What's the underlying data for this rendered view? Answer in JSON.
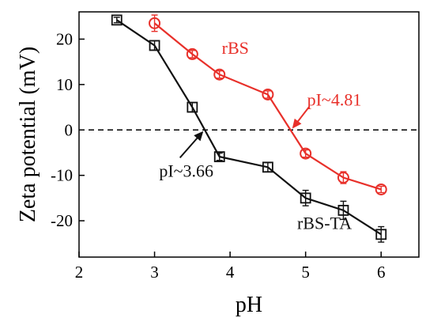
{
  "chart_data": {
    "type": "line",
    "title": "",
    "xlabel": "pH",
    "ylabel": "Zeta potential (mV)",
    "xlim": [
      2,
      6.5
    ],
    "ylim": [
      -28,
      26
    ],
    "xticks": [
      2,
      3,
      4,
      5,
      6
    ],
    "yticks": [
      -20,
      -10,
      0,
      10,
      20
    ],
    "grid": false,
    "legend": "none",
    "zero_line": {
      "y": 0,
      "style": "dashed"
    },
    "series": [
      {
        "name": "rBS",
        "color": "#e8302a",
        "marker": "circle",
        "x": [
          3.0,
          3.5,
          3.86,
          4.5,
          5.0,
          5.5,
          6.0
        ],
        "y": [
          23.5,
          16.7,
          12.2,
          7.8,
          -5.2,
          -10.5,
          -13.1
        ],
        "err": [
          1.8,
          0.8,
          0.8,
          0.8,
          0.8,
          1.3,
          0.7
        ]
      },
      {
        "name": "rBS-TA",
        "color": "#111111",
        "marker": "square",
        "x": [
          2.5,
          3.0,
          3.5,
          3.86,
          4.5,
          5.0,
          5.5,
          6.0
        ],
        "y": [
          24.2,
          18.6,
          5.0,
          -5.9,
          -8.2,
          -15.0,
          -17.7,
          -23.0
        ],
        "err": [
          0.6,
          1.0,
          1.0,
          0.8,
          1.0,
          1.7,
          2.0,
          1.7
        ]
      }
    ],
    "annotations": [
      {
        "text": "rBS",
        "color": "#e8302a",
        "x": 4.07,
        "y": 16.8
      },
      {
        "text": "rBS-TA",
        "color": "#111111",
        "x": 5.25,
        "y": -21.8
      },
      {
        "text": "pI~4.81",
        "color": "#e8302a",
        "x": 5.38,
        "y": 5.4,
        "arrow_to": [
          4.81,
          0
        ]
      },
      {
        "text": "pI~3.66",
        "color": "#111111",
        "x": 3.42,
        "y": -10.3,
        "arrow_to": [
          3.66,
          0
        ]
      }
    ]
  }
}
